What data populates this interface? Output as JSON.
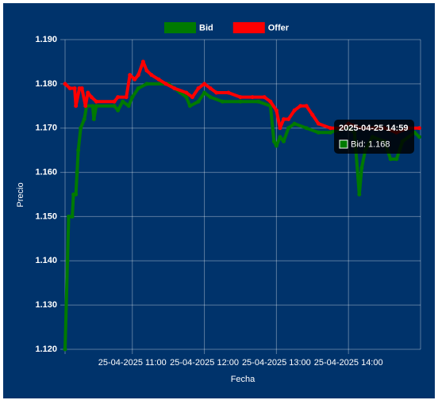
{
  "chart_data": {
    "type": "line",
    "x_label": "Fecha",
    "y_label": "Precio",
    "xlim": [
      "2025-04-25 10:04",
      "2025-04-25 15:00"
    ],
    "xticks": [
      {
        "value": "2025-04-25 11:00",
        "label": "25-04-2025 11:00"
      },
      {
        "value": "2025-04-25 12:00",
        "label": "25-04-2025 12:00"
      },
      {
        "value": "2025-04-25 13:00",
        "label": "25-04-2025 13:00"
      },
      {
        "value": "2025-04-25 14:00",
        "label": "25-04-2025 14:00"
      }
    ],
    "ylim": [
      1.12,
      1.19
    ],
    "yticks": [
      {
        "value": 1.12,
        "label": "1.120"
      },
      {
        "value": 1.13,
        "label": "1.130"
      },
      {
        "value": 1.14,
        "label": "1.140"
      },
      {
        "value": 1.15,
        "label": "1.150"
      },
      {
        "value": 1.16,
        "label": "1.160"
      },
      {
        "value": 1.17,
        "label": "1.170"
      },
      {
        "value": 1.18,
        "label": "1.180"
      },
      {
        "value": 1.19,
        "label": "1.190"
      }
    ],
    "grid": true,
    "legend": "top",
    "series": [
      {
        "name": "Bid",
        "color": "#007a00",
        "x": [
          "2025-04-25 10:04",
          "2025-04-25 10:06",
          "2025-04-25 10:07",
          "2025-04-25 10:10",
          "2025-04-25 10:11",
          "2025-04-25 10:13",
          "2025-04-25 10:14",
          "2025-04-25 10:15",
          "2025-04-25 10:17",
          "2025-04-25 10:20",
          "2025-04-25 10:22",
          "2025-04-25 10:27",
          "2025-04-25 10:28",
          "2025-04-25 10:30",
          "2025-04-25 10:45",
          "2025-04-25 10:48",
          "2025-04-25 10:52",
          "2025-04-25 10:57",
          "2025-04-25 11:00",
          "2025-04-25 11:05",
          "2025-04-25 11:12",
          "2025-04-25 11:30",
          "2025-04-25 11:35",
          "2025-04-25 11:40",
          "2025-04-25 11:45",
          "2025-04-25 11:48",
          "2025-04-25 11:55",
          "2025-04-25 12:00",
          "2025-04-25 12:05",
          "2025-04-25 12:15",
          "2025-04-25 12:30",
          "2025-04-25 12:45",
          "2025-04-25 12:55",
          "2025-04-25 12:58",
          "2025-04-25 13:00",
          "2025-04-25 13:03",
          "2025-04-25 13:06",
          "2025-04-25 13:10",
          "2025-04-25 13:15",
          "2025-04-25 13:25",
          "2025-04-25 13:35",
          "2025-04-25 13:45",
          "2025-04-25 13:55",
          "2025-04-25 14:00",
          "2025-04-25 14:05",
          "2025-04-25 14:09",
          "2025-04-25 14:11",
          "2025-04-25 14:14",
          "2025-04-25 14:20",
          "2025-04-25 14:30",
          "2025-04-25 14:35",
          "2025-04-25 14:40",
          "2025-04-25 14:45",
          "2025-04-25 14:55",
          "2025-04-25 14:59"
        ],
        "values": [
          1.12,
          1.14,
          1.15,
          1.15,
          1.155,
          1.155,
          1.16,
          1.165,
          1.17,
          1.172,
          1.175,
          1.175,
          1.172,
          1.175,
          1.175,
          1.174,
          1.176,
          1.175,
          1.177,
          1.179,
          1.18,
          1.18,
          1.179,
          1.178,
          1.177,
          1.175,
          1.176,
          1.178,
          1.177,
          1.176,
          1.176,
          1.176,
          1.175,
          1.167,
          1.166,
          1.168,
          1.167,
          1.17,
          1.171,
          1.17,
          1.169,
          1.169,
          1.17,
          1.17,
          1.169,
          1.155,
          1.161,
          1.165,
          1.168,
          1.167,
          1.163,
          1.163,
          1.167,
          1.169,
          1.168
        ]
      },
      {
        "name": "Offer",
        "color": "#ff0000",
        "x": [
          "2025-04-25 10:04",
          "2025-04-25 10:08",
          "2025-04-25 10:12",
          "2025-04-25 10:13",
          "2025-04-25 10:16",
          "2025-04-25 10:18",
          "2025-04-25 10:21",
          "2025-04-25 10:23",
          "2025-04-25 10:26",
          "2025-04-25 10:30",
          "2025-04-25 10:45",
          "2025-04-25 10:48",
          "2025-04-25 10:55",
          "2025-04-25 10:58",
          "2025-04-25 11:02",
          "2025-04-25 11:05",
          "2025-04-25 11:09",
          "2025-04-25 11:12",
          "2025-04-25 11:16",
          "2025-04-25 11:22",
          "2025-04-25 11:28",
          "2025-04-25 11:35",
          "2025-04-25 11:45",
          "2025-04-25 11:50",
          "2025-04-25 11:55",
          "2025-04-25 12:00",
          "2025-04-25 12:05",
          "2025-04-25 12:10",
          "2025-04-25 12:20",
          "2025-04-25 12:30",
          "2025-04-25 12:40",
          "2025-04-25 12:50",
          "2025-04-25 12:55",
          "2025-04-25 13:00",
          "2025-04-25 13:03",
          "2025-04-25 13:06",
          "2025-04-25 13:10",
          "2025-04-25 13:15",
          "2025-04-25 13:20",
          "2025-04-25 13:25",
          "2025-04-25 13:30",
          "2025-04-25 13:35",
          "2025-04-25 13:45",
          "2025-04-25 13:55",
          "2025-04-25 14:00",
          "2025-04-25 14:10",
          "2025-04-25 14:20",
          "2025-04-25 14:30",
          "2025-04-25 14:40",
          "2025-04-25 14:50",
          "2025-04-25 14:59"
        ],
        "values": [
          1.18,
          1.179,
          1.179,
          1.175,
          1.179,
          1.179,
          1.175,
          1.178,
          1.177,
          1.176,
          1.176,
          1.177,
          1.177,
          1.182,
          1.181,
          1.182,
          1.185,
          1.183,
          1.182,
          1.181,
          1.18,
          1.179,
          1.178,
          1.177,
          1.179,
          1.18,
          1.179,
          1.178,
          1.178,
          1.177,
          1.177,
          1.177,
          1.176,
          1.174,
          1.17,
          1.172,
          1.172,
          1.174,
          1.175,
          1.175,
          1.173,
          1.171,
          1.17,
          1.17,
          1.171,
          1.17,
          1.17,
          1.17,
          1.169,
          1.17,
          1.17
        ]
      }
    ],
    "tooltip": {
      "title": "2025-04-25 14:59",
      "label": "Bid: 1.168"
    }
  }
}
